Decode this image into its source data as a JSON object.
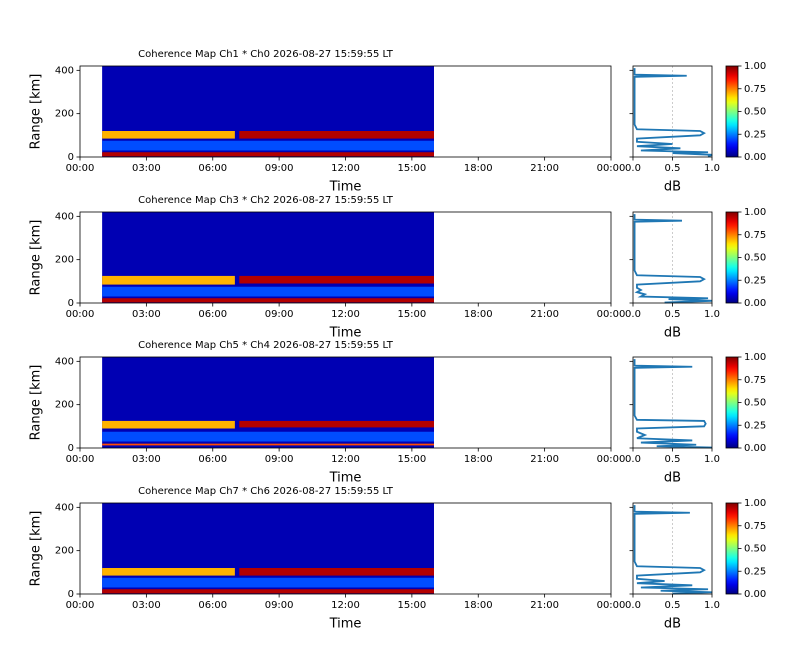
{
  "chart_data": [
    {
      "type": "heatmap",
      "title": "Coherence Map Ch1 * Ch0 2026-08-27 15:59:55 LT",
      "xlabel": "Time",
      "ylabel": "Range [km]",
      "xlim": [
        0,
        24
      ],
      "xticks": [
        {
          "value": 0,
          "label": "00:00"
        },
        {
          "value": 3,
          "label": "03:00"
        },
        {
          "value": 6,
          "label": "06:00"
        },
        {
          "value": 9,
          "label": "09:00"
        },
        {
          "value": 12,
          "label": "12:00"
        },
        {
          "value": 15,
          "label": "15:00"
        },
        {
          "value": 18,
          "label": "18:00"
        },
        {
          "value": 21,
          "label": "21:00"
        },
        {
          "value": 24,
          "label": "00:00"
        }
      ],
      "ylim": [
        0,
        420
      ],
      "yticks": [
        0,
        200,
        400
      ],
      "cells": [
        {
          "x": [
            1,
            16
          ],
          "y": [
            0,
            420
          ],
          "value": 0.05
        },
        {
          "x": [
            1,
            16
          ],
          "y": [
            30,
            75
          ],
          "value": 0.2
        },
        {
          "x": [
            1,
            16
          ],
          "y": [
            3,
            22
          ],
          "value": 0.95
        },
        {
          "x": [
            1,
            7
          ],
          "y": [
            85,
            120
          ],
          "value": 0.7
        },
        {
          "x": [
            7.2,
            16
          ],
          "y": [
            85,
            120
          ],
          "value": 0.95
        }
      ],
      "colorbar": {
        "colormap": "jet",
        "lim": [
          0,
          1
        ],
        "ticks": [
          {
            "value": 0,
            "label": "0.00"
          },
          {
            "value": 0.25,
            "label": "0.25"
          },
          {
            "value": 0.5,
            "label": "0.50"
          },
          {
            "value": 0.75,
            "label": "0.75"
          },
          {
            "value": 1,
            "label": "1.00"
          }
        ]
      },
      "profile": {
        "type": "line",
        "xlabel": "dB",
        "color": "#1f77b4",
        "xlim": [
          0,
          1
        ],
        "xticks": [
          {
            "value": 0,
            "label": "0.0"
          },
          {
            "value": 0.5,
            "label": "0.5"
          },
          {
            "value": 1,
            "label": "1.0"
          }
        ],
        "reference": 0.5,
        "values": [
          0.95,
          1.0,
          0.5,
          0.95,
          0.1,
          0.6,
          0.05,
          0.5,
          0.05,
          0.05,
          0.85,
          0.9,
          0.85,
          0.05,
          0.02,
          0.02,
          0.68,
          0.02,
          0.02
        ],
        "range": [
          2,
          10,
          18,
          22,
          30,
          40,
          50,
          60,
          70,
          85,
          100,
          110,
          120,
          128,
          150,
          370,
          375,
          380,
          410
        ]
      }
    },
    {
      "type": "heatmap",
      "title": "Coherence Map Ch3 * Ch2 2026-08-27 15:59:55 LT",
      "xlabel": "Time",
      "ylabel": "Range [km]",
      "xlim": [
        0,
        24
      ],
      "xticks": [
        {
          "value": 0,
          "label": "00:00"
        },
        {
          "value": 3,
          "label": "03:00"
        },
        {
          "value": 6,
          "label": "06:00"
        },
        {
          "value": 9,
          "label": "09:00"
        },
        {
          "value": 12,
          "label": "12:00"
        },
        {
          "value": 15,
          "label": "15:00"
        },
        {
          "value": 18,
          "label": "18:00"
        },
        {
          "value": 21,
          "label": "21:00"
        },
        {
          "value": 24,
          "label": "00:00"
        }
      ],
      "ylim": [
        0,
        420
      ],
      "yticks": [
        0,
        200,
        400
      ],
      "cells": [
        {
          "x": [
            1,
            16
          ],
          "y": [
            0,
            420
          ],
          "value": 0.05
        },
        {
          "x": [
            1,
            16
          ],
          "y": [
            30,
            75
          ],
          "value": 0.2
        },
        {
          "x": [
            1,
            16
          ],
          "y": [
            3,
            22
          ],
          "value": 0.95
        },
        {
          "x": [
            1,
            7
          ],
          "y": [
            85,
            125
          ],
          "value": 0.7
        },
        {
          "x": [
            7.2,
            16
          ],
          "y": [
            90,
            125
          ],
          "value": 0.95
        }
      ],
      "colorbar": {
        "colormap": "jet",
        "lim": [
          0,
          1
        ],
        "ticks": [
          {
            "value": 0,
            "label": "0.00"
          },
          {
            "value": 0.25,
            "label": "0.25"
          },
          {
            "value": 0.5,
            "label": "0.50"
          },
          {
            "value": 0.75,
            "label": "0.75"
          },
          {
            "value": 1,
            "label": "1.00"
          }
        ]
      },
      "profile": {
        "type": "line",
        "xlabel": "dB",
        "color": "#1f77b4",
        "xlim": [
          0,
          1
        ],
        "xticks": [
          {
            "value": 0,
            "label": "0.0"
          },
          {
            "value": 0.5,
            "label": "0.5"
          },
          {
            "value": 1,
            "label": "1.0"
          }
        ],
        "reference": 0.5,
        "values": [
          0.4,
          1.0,
          0.45,
          0.95,
          0.1,
          0.15,
          0.05,
          0.1,
          0.05,
          0.05,
          0.85,
          0.9,
          0.85,
          0.05,
          0.02,
          0.02,
          0.62,
          0.02,
          0.02
        ],
        "range": [
          2,
          10,
          18,
          22,
          30,
          40,
          50,
          60,
          70,
          85,
          100,
          110,
          120,
          128,
          150,
          375,
          380,
          385,
          410
        ]
      }
    },
    {
      "type": "heatmap",
      "title": "Coherence Map Ch5 * Ch4 2026-08-27 15:59:55 LT",
      "xlabel": "Time",
      "ylabel": "Range [km]",
      "xlim": [
        0,
        24
      ],
      "xticks": [
        {
          "value": 0,
          "label": "00:00"
        },
        {
          "value": 3,
          "label": "03:00"
        },
        {
          "value": 6,
          "label": "06:00"
        },
        {
          "value": 9,
          "label": "09:00"
        },
        {
          "value": 12,
          "label": "12:00"
        },
        {
          "value": 15,
          "label": "15:00"
        },
        {
          "value": 18,
          "label": "18:00"
        },
        {
          "value": 21,
          "label": "21:00"
        },
        {
          "value": 24,
          "label": "00:00"
        }
      ],
      "ylim": [
        0,
        420
      ],
      "yticks": [
        0,
        200,
        400
      ],
      "cells": [
        {
          "x": [
            1,
            16
          ],
          "y": [
            0,
            420
          ],
          "value": 0.05
        },
        {
          "x": [
            1,
            16
          ],
          "y": [
            30,
            75
          ],
          "value": 0.2
        },
        {
          "x": [
            1,
            16
          ],
          "y": [
            12,
            20
          ],
          "value": 0.8
        },
        {
          "x": [
            1,
            7
          ],
          "y": [
            90,
            125
          ],
          "value": 0.7
        },
        {
          "x": [
            7.2,
            16
          ],
          "y": [
            95,
            125
          ],
          "value": 0.95
        }
      ],
      "colorbar": {
        "colormap": "jet",
        "lim": [
          0,
          1
        ],
        "ticks": [
          {
            "value": 0,
            "label": "0.00"
          },
          {
            "value": 0.25,
            "label": "0.25"
          },
          {
            "value": 0.5,
            "label": "0.50"
          },
          {
            "value": 0.75,
            "label": "0.75"
          },
          {
            "value": 1,
            "label": "1.00"
          }
        ]
      },
      "profile": {
        "type": "line",
        "xlabel": "dB",
        "color": "#1f77b4",
        "xlim": [
          0,
          1
        ],
        "xticks": [
          {
            "value": 0,
            "label": "0.0"
          },
          {
            "value": 0.5,
            "label": "0.5"
          },
          {
            "value": 1,
            "label": "1.0"
          }
        ],
        "reference": 0.5,
        "values": [
          1.0,
          0.3,
          0.8,
          0.1,
          0.75,
          0.05,
          0.15,
          0.05,
          0.05,
          0.9,
          0.92,
          0.9,
          0.05,
          0.02,
          0.02,
          0.75,
          0.02,
          0.02
        ],
        "range": [
          2,
          8,
          15,
          25,
          35,
          45,
          60,
          75,
          90,
          100,
          112,
          125,
          130,
          150,
          370,
          375,
          380,
          410
        ]
      }
    },
    {
      "type": "heatmap",
      "title": "Coherence Map Ch7 * Ch6 2026-08-27 15:59:55 LT",
      "xlabel": "Time",
      "ylabel": "Range [km]",
      "xlim": [
        0,
        24
      ],
      "xticks": [
        {
          "value": 0,
          "label": "00:00"
        },
        {
          "value": 3,
          "label": "03:00"
        },
        {
          "value": 6,
          "label": "06:00"
        },
        {
          "value": 9,
          "label": "09:00"
        },
        {
          "value": 12,
          "label": "12:00"
        },
        {
          "value": 15,
          "label": "15:00"
        },
        {
          "value": 18,
          "label": "18:00"
        },
        {
          "value": 21,
          "label": "21:00"
        },
        {
          "value": 24,
          "label": "00:00"
        }
      ],
      "ylim": [
        0,
        420
      ],
      "yticks": [
        0,
        200,
        400
      ],
      "cells": [
        {
          "x": [
            1,
            16
          ],
          "y": [
            0,
            420
          ],
          "value": 0.05
        },
        {
          "x": [
            1,
            16
          ],
          "y": [
            30,
            75
          ],
          "value": 0.2
        },
        {
          "x": [
            1,
            16
          ],
          "y": [
            3,
            22
          ],
          "value": 0.95
        },
        {
          "x": [
            1,
            7
          ],
          "y": [
            85,
            120
          ],
          "value": 0.7
        },
        {
          "x": [
            7.2,
            16
          ],
          "y": [
            85,
            120
          ],
          "value": 0.95
        }
      ],
      "colorbar": {
        "colormap": "jet",
        "lim": [
          0,
          1
        ],
        "ticks": [
          {
            "value": 0,
            "label": "0.00"
          },
          {
            "value": 0.25,
            "label": "0.25"
          },
          {
            "value": 0.5,
            "label": "0.50"
          },
          {
            "value": 0.75,
            "label": "0.75"
          },
          {
            "value": 1,
            "label": "1.00"
          }
        ]
      },
      "profile": {
        "type": "line",
        "xlabel": "dB",
        "color": "#1f77b4",
        "xlim": [
          0,
          1
        ],
        "xticks": [
          {
            "value": 0,
            "label": "0.0"
          },
          {
            "value": 0.5,
            "label": "0.5"
          },
          {
            "value": 1,
            "label": "1.0"
          }
        ],
        "reference": 0.5,
        "values": [
          0.5,
          1.0,
          0.35,
          0.95,
          0.1,
          0.75,
          0.05,
          0.4,
          0.05,
          0.05,
          0.85,
          0.9,
          0.85,
          0.05,
          0.02,
          0.02,
          0.72,
          0.02,
          0.02
        ],
        "range": [
          2,
          8,
          15,
          22,
          30,
          40,
          50,
          60,
          70,
          85,
          100,
          110,
          120,
          128,
          150,
          370,
          375,
          380,
          410
        ]
      }
    }
  ]
}
